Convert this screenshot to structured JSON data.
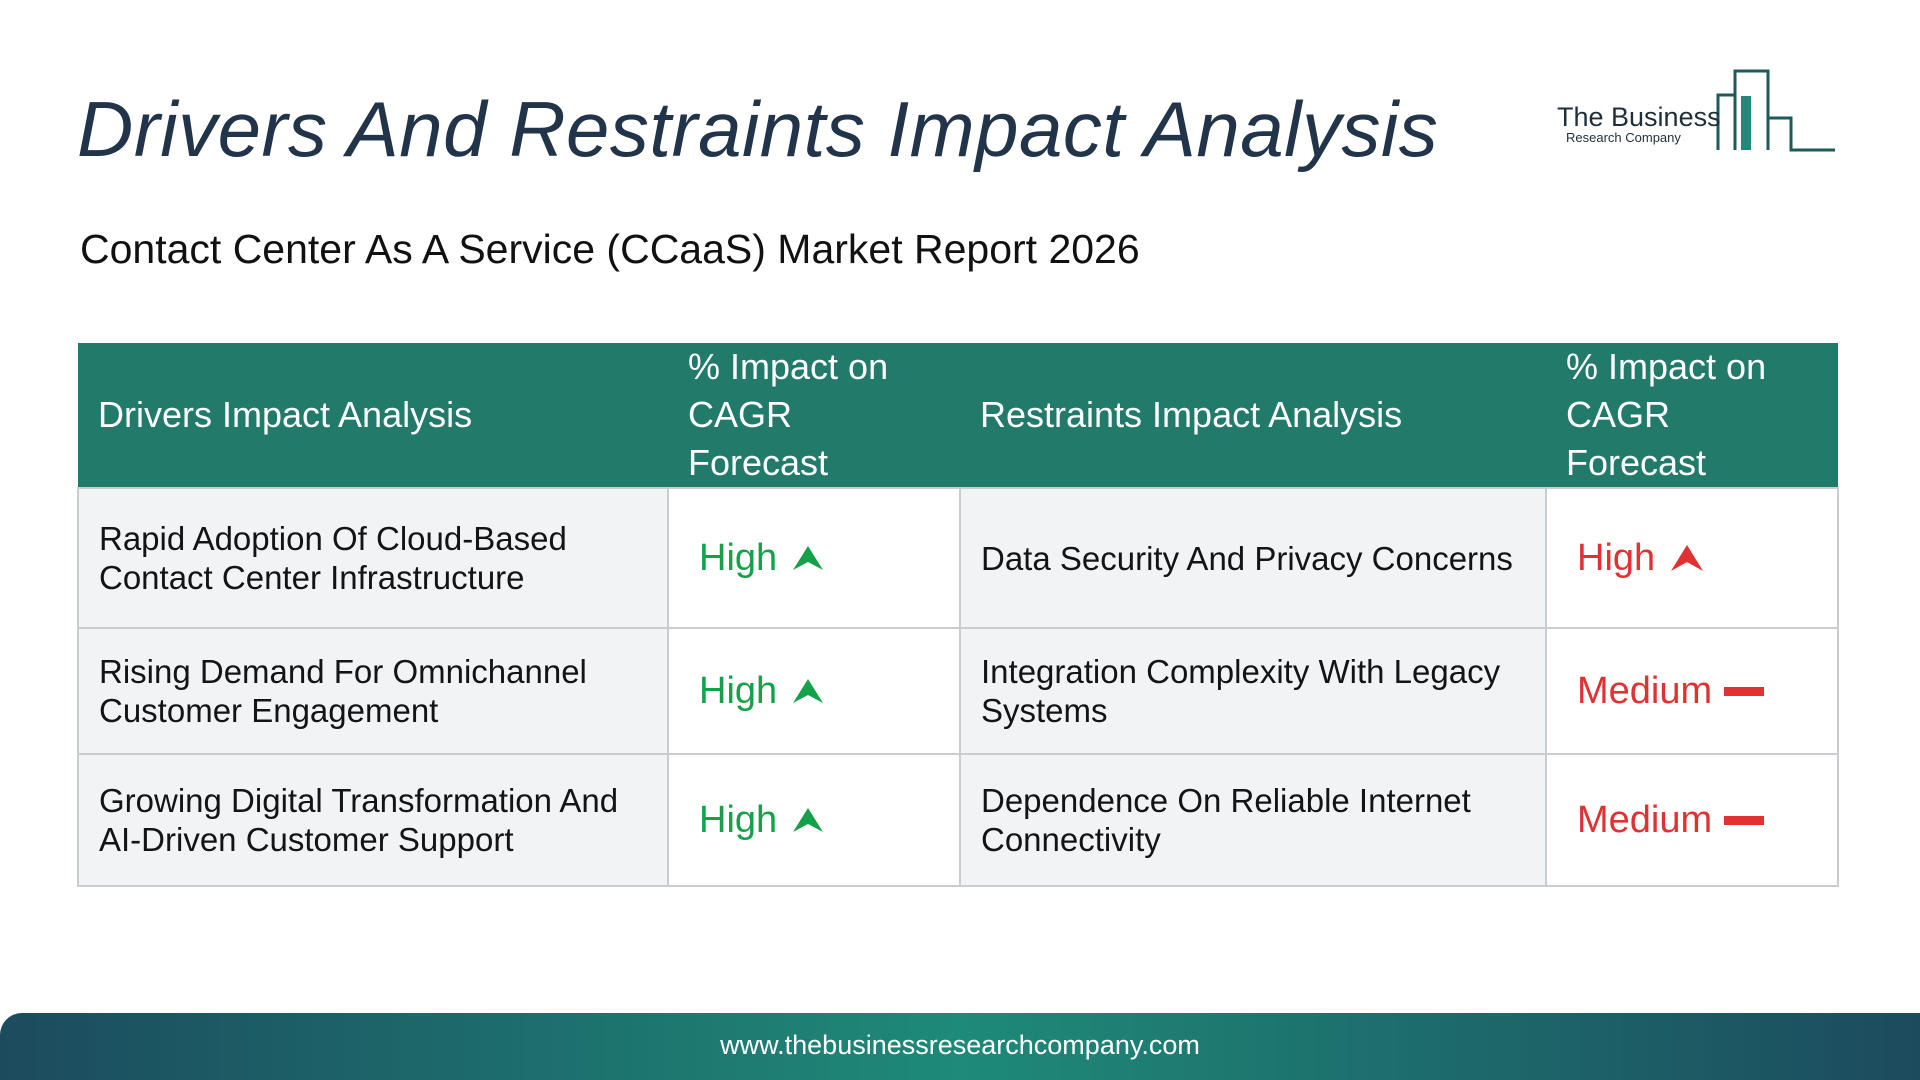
{
  "page": {
    "title": "Drivers And Restraints Impact Analysis",
    "subtitle": "Contact Center As A Service (CCaaS) Market Report 2026"
  },
  "logo": {
    "name": "The Business",
    "tagline": "Research Company",
    "color": "#21887a"
  },
  "table": {
    "headers": [
      "Drivers Impact Analysis",
      "% Impact on CAGR Forecast",
      "Restraints Impact Analysis",
      "% Impact on CAGR Forecast"
    ],
    "rows": [
      {
        "driver": "Rapid Adoption Of Cloud-Based Contact Center Infrastructure",
        "driver_impact": "High",
        "driver_icon": "arrow-up-icon",
        "restraint": "Data Security And Privacy Concerns",
        "restraint_impact": "High",
        "restraint_icon": "arrow-up-icon"
      },
      {
        "driver": "Rising Demand For Omnichannel Customer Engagement",
        "driver_impact": "High",
        "driver_icon": "arrow-up-icon",
        "restraint": "Integration Complexity With Legacy Systems",
        "restraint_impact": "Medium",
        "restraint_icon": "dash-icon"
      },
      {
        "driver": "Growing Digital Transformation And AI-Driven Customer Support",
        "driver_impact": "High",
        "driver_icon": "arrow-up-icon",
        "restraint": "Dependence On Reliable Internet Connectivity",
        "restraint_impact": "Medium",
        "restraint_icon": "dash-icon"
      }
    ]
  },
  "colors": {
    "header_bg": "#217a6a",
    "driver_impact": "#15a149",
    "restraint_impact": "#e23131",
    "title": "#22344a"
  },
  "footer": {
    "url": "www.thebusinessresearchcompany.com"
  }
}
